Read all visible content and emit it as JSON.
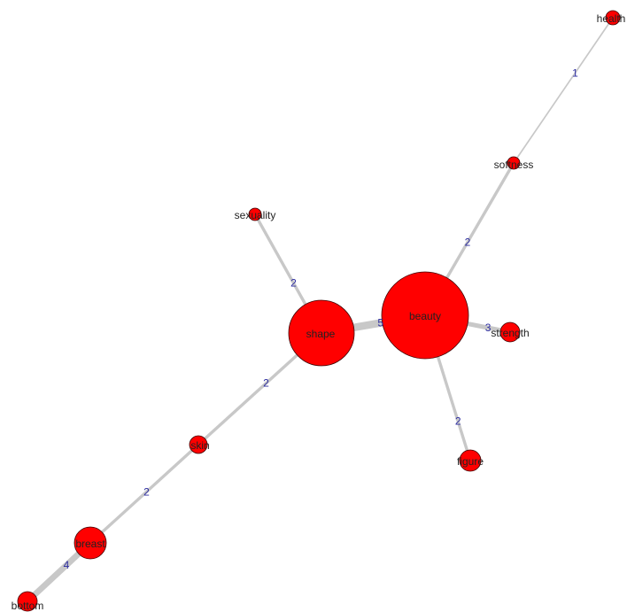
{
  "graph": {
    "background": "#ffffff",
    "node_fill": "#ff0000",
    "node_stroke": "#3a0000",
    "edge_color": "#c8c8c8",
    "edge_label_color": "#2c2ca0",
    "nodes": [
      {
        "id": "health",
        "label": "health"
      },
      {
        "id": "softness",
        "label": "softness"
      },
      {
        "id": "sexuality",
        "label": "sexuality"
      },
      {
        "id": "beauty",
        "label": "beauty"
      },
      {
        "id": "shape",
        "label": "shape"
      },
      {
        "id": "strength",
        "label": "strength"
      },
      {
        "id": "skin",
        "label": "skin"
      },
      {
        "id": "figure",
        "label": "figure"
      },
      {
        "id": "breast",
        "label": "breast"
      },
      {
        "id": "bottom",
        "label": "bottom"
      }
    ],
    "edges": [
      {
        "source": "health",
        "target": "softness",
        "weight": 1,
        "label": "1"
      },
      {
        "source": "softness",
        "target": "beauty",
        "weight": 2,
        "label": "2"
      },
      {
        "source": "sexuality",
        "target": "shape",
        "weight": 2,
        "label": "2"
      },
      {
        "source": "shape",
        "target": "beauty",
        "weight": 5,
        "label": "5"
      },
      {
        "source": "beauty",
        "target": "strength",
        "weight": 3,
        "label": "3"
      },
      {
        "source": "beauty",
        "target": "figure",
        "weight": 2,
        "label": "2"
      },
      {
        "source": "shape",
        "target": "skin",
        "weight": 2,
        "label": "2"
      },
      {
        "source": "skin",
        "target": "breast",
        "weight": 2,
        "label": "2"
      },
      {
        "source": "breast",
        "target": "bottom",
        "weight": 4,
        "label": "4"
      }
    ]
  }
}
